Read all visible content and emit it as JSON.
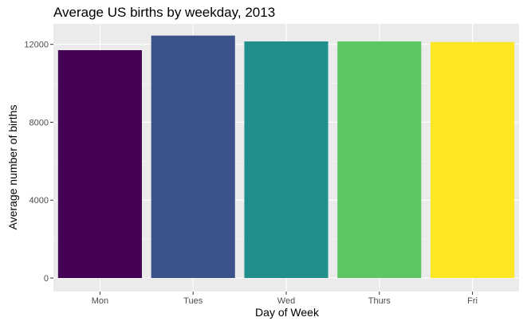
{
  "chart_data": {
    "type": "bar",
    "title": "Average US births by weekday, 2013",
    "xlabel": "Day of Week",
    "ylabel": "Average number of births",
    "categories": [
      "Mon",
      "Tues",
      "Wed",
      "Thurs",
      "Fri"
    ],
    "values": [
      11700,
      12450,
      12150,
      12150,
      12120
    ],
    "bar_colors": [
      "#440154",
      "#3B528B",
      "#21908C",
      "#5DC863",
      "#FDE725"
    ],
    "ylim": [
      0,
      13050
    ],
    "yticks": [
      0,
      4000,
      8000,
      12000
    ],
    "ytick_labels": [
      "0",
      "4000",
      "8000",
      "12000"
    ],
    "grid": true,
    "legend": "none"
  }
}
